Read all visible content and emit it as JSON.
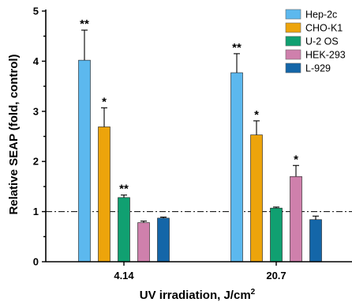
{
  "chart_data": {
    "type": "bar",
    "xlabel": "UV irradiation, J/cm",
    "xlabel_superscript": "2",
    "ylabel": "Relative SEAP (fold, control)",
    "ylim": [
      0,
      5
    ],
    "yticks": [
      "0",
      "1",
      "2",
      "3",
      "4",
      "5"
    ],
    "categories": [
      "4.14",
      "20.7"
    ],
    "reference_line": {
      "y": 1,
      "style": "dash-dot"
    },
    "legend_placement": "top-right",
    "series": [
      {
        "name": "Hep-2c",
        "color": "#5cb8ee",
        "values": [
          4.02,
          3.77
        ],
        "errors": [
          0.6,
          0.38
        ],
        "significance": [
          "**",
          "**"
        ]
      },
      {
        "name": "CHO-K1",
        "color": "#eda40b",
        "values": [
          2.69,
          2.53
        ],
        "errors": [
          0.38,
          0.28
        ],
        "significance": [
          "*",
          "*"
        ]
      },
      {
        "name": "U-2 OS",
        "color": "#10a071",
        "values": [
          1.28,
          1.07
        ],
        "errors": [
          0.05,
          0.02
        ],
        "significance": [
          "**",
          ""
        ]
      },
      {
        "name": "HEK-293",
        "color": "#cf80ac",
        "values": [
          0.78,
          1.7
        ],
        "errors": [
          0.03,
          0.22
        ],
        "significance": [
          "",
          "*"
        ]
      },
      {
        "name": "L-929",
        "color": "#1466a8",
        "values": [
          0.87,
          0.84
        ],
        "errors": [
          0.02,
          0.07
        ],
        "significance": [
          "",
          ""
        ]
      }
    ]
  }
}
